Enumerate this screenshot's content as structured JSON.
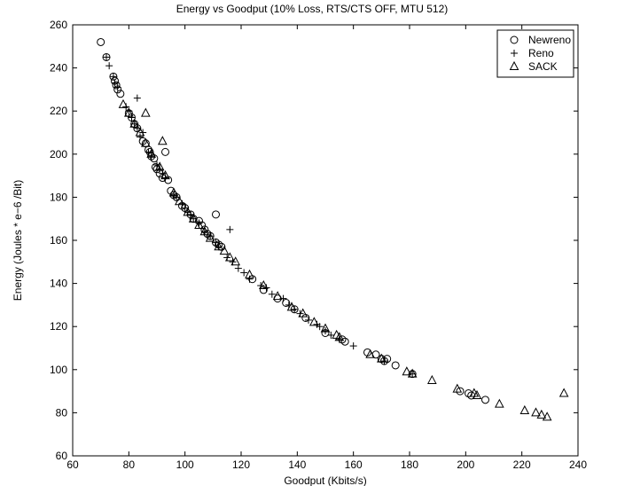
{
  "chart_data": {
    "type": "scatter",
    "title": "Energy vs Goodput (10% Loss, RTS/CTS OFF, MTU 512)",
    "xlabel": "Goodput (Kbits/s)",
    "ylabel": "Energy (Joules * e−6 /Bit)",
    "xlim": [
      60,
      240
    ],
    "ylim": [
      60,
      260
    ],
    "xticks": [
      60,
      80,
      100,
      120,
      140,
      160,
      180,
      200,
      220,
      240
    ],
    "yticks": [
      60,
      80,
      100,
      120,
      140,
      160,
      180,
      200,
      220,
      240,
      260
    ],
    "grid": false,
    "legend_position": "top-right",
    "series": [
      {
        "name": "Newreno",
        "marker": "circle",
        "x": [
          70,
          72,
          74.5,
          75,
          75.5,
          76,
          77,
          80,
          81,
          82,
          83,
          85,
          86,
          87,
          87.5,
          88,
          89,
          89.5,
          90,
          91,
          92,
          93,
          94,
          95,
          96,
          97,
          99,
          100,
          102,
          103,
          105,
          106,
          107,
          108,
          109,
          111,
          112,
          113,
          111,
          124,
          128,
          133,
          136,
          139,
          143,
          150,
          156,
          157,
          165,
          168,
          170,
          171,
          172,
          175,
          181,
          198,
          201,
          202,
          207
        ],
        "y": [
          252,
          245,
          236,
          234,
          232,
          230,
          228,
          219,
          217,
          214,
          212,
          206,
          205,
          202,
          201,
          199,
          198,
          194,
          193,
          191,
          189,
          201,
          188,
          183,
          181,
          180,
          176,
          175,
          172,
          170,
          169,
          167,
          165,
          163,
          162,
          159,
          158,
          157,
          172,
          142,
          137,
          133,
          131,
          128,
          124,
          117,
          114,
          113,
          108,
          107,
          105,
          104,
          105,
          102,
          98,
          90,
          89,
          88,
          86
        ]
      },
      {
        "name": "Reno",
        "marker": "plus",
        "x": [
          72,
          73,
          74.5,
          75,
          76,
          79,
          80,
          81,
          82,
          83,
          84,
          85,
          87,
          88,
          90,
          91,
          92,
          93,
          96,
          97,
          99,
          100,
          101,
          102,
          103,
          105,
          107,
          109,
          111,
          112,
          115,
          116,
          117,
          119,
          121,
          123,
          127,
          129,
          131,
          135,
          137,
          139,
          141,
          144,
          147,
          148,
          150,
          152,
          155,
          160,
          171,
          181,
          83
        ],
        "y": [
          245,
          241,
          236,
          233,
          231,
          222,
          220,
          217,
          214,
          212,
          208,
          210,
          201,
          199,
          195,
          193,
          191,
          189,
          181,
          180,
          177,
          175,
          173,
          172,
          170,
          168,
          164,
          162,
          159,
          157,
          152,
          165,
          150,
          147,
          145,
          142,
          139,
          138,
          135,
          133,
          130,
          128,
          126,
          123,
          121,
          120,
          118,
          116,
          114,
          111,
          104,
          98,
          226
        ]
      },
      {
        "name": "SACK",
        "marker": "triangle",
        "x": [
          78,
          80,
          82,
          84,
          86,
          88,
          91,
          93,
          96,
          98,
          101,
          103,
          105,
          107,
          109,
          112,
          114,
          116,
          118,
          123,
          128,
          133,
          138,
          142,
          146,
          150,
          154,
          155,
          166,
          170,
          179,
          181,
          188,
          197,
          203,
          204,
          212,
          221,
          225,
          227,
          229,
          235,
          86,
          92
        ],
        "y": [
          223,
          219,
          214,
          210,
          205,
          200,
          194,
          190,
          182,
          178,
          173,
          170,
          167,
          164,
          161,
          157,
          155,
          152,
          150,
          144,
          139,
          134,
          129,
          126,
          122,
          119,
          116,
          115,
          107,
          105,
          99,
          98,
          95,
          91,
          89,
          88,
          84,
          81,
          80,
          79,
          78,
          89,
          219,
          206
        ]
      }
    ]
  }
}
